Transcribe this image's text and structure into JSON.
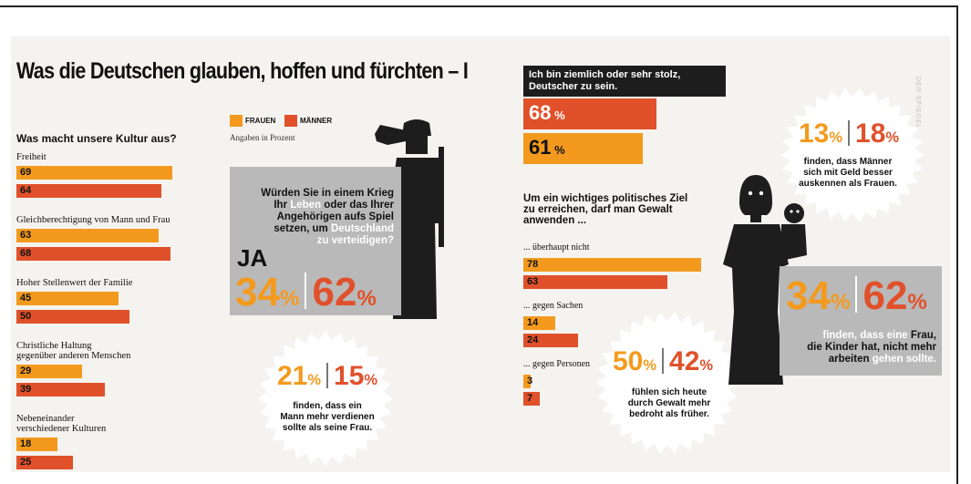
{
  "headline": "Was die Deutschen glauben, hoffen und fürchten  – I",
  "watermark": "DER SPIEGEL",
  "legend": {
    "frauen": "FRAUEN",
    "maenner": "MÄNNER",
    "note": "Angaben in Prozent"
  },
  "colors": {
    "frauen": "#f39a1e",
    "maenner": "#e0512b",
    "grey": "#b9b9b9",
    "black": "#1d1d1d"
  },
  "chart_data": [
    {
      "type": "bar",
      "title": "Was macht unsere Kultur aus?",
      "categories": [
        "Freiheit",
        "Gleichberechtigung von Mann und Frau",
        "Hoher Stellenwert der Familie",
        "Christliche Haltung gegenüber anderen Menschen",
        "Nebeneinander verschiedener Kulturen"
      ],
      "category_lines": [
        [
          "Freiheit"
        ],
        [
          "Gleichberechtigung von Mann und Frau"
        ],
        [
          "Hoher Stellenwert der Familie"
        ],
        [
          "Christliche Haltung",
          "gegenüber anderen Menschen"
        ],
        [
          "Nebeneinander",
          "verschiedener Kulturen"
        ]
      ],
      "series": [
        {
          "name": "FRAUEN",
          "values": [
            69,
            63,
            45,
            29,
            18
          ]
        },
        {
          "name": "MÄNNER",
          "values": [
            64,
            68,
            50,
            39,
            25
          ]
        }
      ]
    },
    {
      "type": "bar",
      "title": "Ich bin ziemlich oder sehr stolz, Deutscher zu sein.",
      "title_lines": [
        "Ich bin ziemlich oder sehr stolz,",
        "Deutscher zu sein."
      ],
      "series": [
        {
          "name": "MÄNNER",
          "value": 68
        },
        {
          "name": "FRAUEN",
          "value": 61
        }
      ]
    },
    {
      "type": "bar",
      "title": "Um ein wichtiges politisches Ziel zu erreichen, darf man Gewalt anwenden ...",
      "title_lines": [
        "Um ein wichtiges politisches Ziel",
        "zu erreichen, darf man Gewalt",
        "anwenden ..."
      ],
      "categories": [
        "... überhaupt nicht",
        "... gegen Sachen",
        "... gegen Personen"
      ],
      "series": [
        {
          "name": "FRAUEN",
          "values": [
            78,
            14,
            3
          ]
        },
        {
          "name": "MÄNNER",
          "values": [
            63,
            24,
            7
          ]
        }
      ]
    }
  ],
  "war_question": {
    "lines": [
      [
        {
          "t": "Würden Sie in einem Krieg",
          "w": false
        }
      ],
      [
        {
          "t": "Ihr ",
          "w": false
        },
        {
          "t": "Leben",
          "w": true
        },
        {
          "t": " oder das Ihrer",
          "w": false
        }
      ],
      [
        {
          "t": "Angehörigen aufs Spiel",
          "w": false
        }
      ],
      [
        {
          "t": "setzen, um ",
          "w": false
        },
        {
          "t": "Deutschland",
          "w": true
        }
      ],
      [
        {
          "t": "zu verteidigen?",
          "w": true
        }
      ]
    ],
    "answer": "JA",
    "frauen": "34",
    "maenner": "62",
    "unit": "%"
  },
  "stat_salary": {
    "frauen": "21",
    "maenner": "15",
    "unit": "%",
    "lines": [
      "finden, dass ein",
      "Mann mehr verdienen",
      "sollte als seine Frau."
    ]
  },
  "stat_money": {
    "frauen": "13",
    "maenner": "18",
    "unit": "%",
    "lines": [
      "finden, dass Männer",
      "sich mit Geld besser",
      "auskennen als Frauen."
    ]
  },
  "stat_violence": {
    "frauen": "50",
    "maenner": "42",
    "unit": "%",
    "lines": [
      "fühlen sich heute",
      "durch Gewalt mehr",
      "bedroht als früher."
    ]
  },
  "stat_mother": {
    "frauen": "34",
    "maenner": "62",
    "unit": "%",
    "lines": [
      [
        {
          "t": "finden, dass eine ",
          "w": true
        },
        {
          "t": "Frau,",
          "w": false
        }
      ],
      [
        {
          "t": "die Kinder hat, nicht mehr",
          "w": false
        }
      ],
      [
        {
          "t": "arbeiten ",
          "w": false
        },
        {
          "t": "gehen sollte.",
          "w": true
        }
      ]
    ]
  }
}
